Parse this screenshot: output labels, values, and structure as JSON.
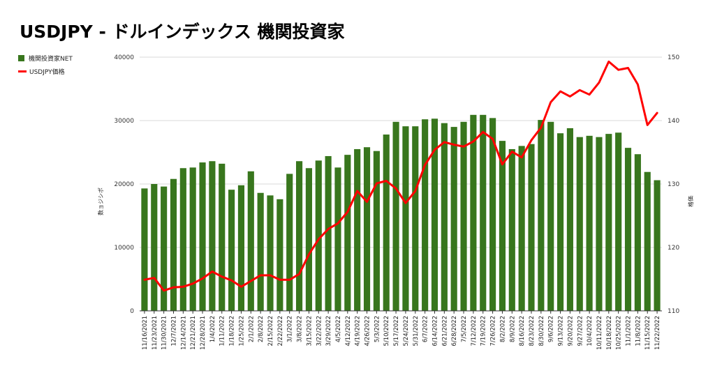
{
  "chart_data": {
    "type": "bar",
    "title": "USDJPY - ドルインデックス 機関投資家",
    "ylabel": "数ョジシポ",
    "y2label": "格価",
    "ylim": [
      0,
      40000
    ],
    "y2lim": [
      110,
      150
    ],
    "yticks": [
      0,
      10000,
      20000,
      30000,
      40000
    ],
    "y2ticks": [
      110,
      120,
      130,
      140,
      150
    ],
    "grid": true,
    "legend_position": "top-left",
    "colors": {
      "bar": "#38761d",
      "line": "#ff0000"
    },
    "categories": [
      "11/16/2021",
      "11/23/2021",
      "11/30/2021",
      "12/7/2021",
      "12/14/2021",
      "12/21/2021",
      "12/28/2021",
      "1/4/2022",
      "1/11/2022",
      "1/18/2022",
      "1/25/2022",
      "2/1/2022",
      "2/8/2022",
      "2/15/2022",
      "2/22/2022",
      "3/1/2022",
      "3/8/2022",
      "3/15/2022",
      "3/22/2022",
      "3/29/2022",
      "4/5/2022",
      "4/12/2022",
      "4/19/2022",
      "4/26/2022",
      "5/3/2022",
      "5/10/2022",
      "5/17/2022",
      "5/24/2022",
      "5/31/2022",
      "6/7/2022",
      "6/14/2022",
      "6/21/2022",
      "6/28/2022",
      "7/5/2022",
      "7/12/2022",
      "7/19/2022",
      "7/26/2022",
      "8/2/2022",
      "8/9/2022",
      "8/16/2022",
      "8/23/2022",
      "8/30/2022",
      "9/6/2022",
      "9/13/2022",
      "9/20/2022",
      "9/27/2022",
      "10/4/2022",
      "10/11/2022",
      "10/18/2022",
      "10/25/2022",
      "11/1/2022",
      "11/8/2022",
      "11/15/2022",
      "11/22/2022"
    ],
    "series": [
      {
        "name": "機関投資家NET",
        "type": "bar",
        "axis": "left",
        "values": [
          19300,
          20000,
          19600,
          20800,
          22500,
          22600,
          23400,
          23600,
          23200,
          19100,
          19800,
          22000,
          18600,
          18200,
          17600,
          21600,
          23600,
          22500,
          23700,
          24400,
          22600,
          24600,
          25500,
          25800,
          25200,
          27800,
          29800,
          29100,
          29100,
          30200,
          30300,
          29600,
          29000,
          29800,
          30900,
          30900,
          30400,
          26800,
          25500,
          26000,
          26300,
          30100,
          29800,
          28000,
          28800,
          27400,
          27600,
          27400,
          27900,
          28100,
          25700,
          24700,
          21900,
          20600
        ]
      },
      {
        "name": "USDJPY価格",
        "type": "line",
        "axis": "right",
        "values": [
          114.9,
          115.2,
          113.2,
          113.7,
          113.8,
          114.3,
          115.1,
          116.2,
          115.4,
          114.8,
          113.8,
          114.7,
          115.6,
          115.6,
          114.9,
          114.9,
          115.8,
          118.9,
          121.3,
          122.9,
          123.8,
          125.6,
          128.9,
          127.2,
          130.1,
          130.5,
          129.3,
          127.0,
          128.9,
          133.0,
          135.4,
          136.6,
          136.2,
          135.9,
          136.7,
          138.2,
          137.1,
          133.1,
          135.1,
          134.2,
          136.9,
          138.9,
          142.9,
          144.6,
          143.8,
          144.8,
          144.1,
          146.0,
          149.3,
          148.0,
          148.3,
          145.7,
          139.3,
          141.2
        ]
      }
    ]
  }
}
